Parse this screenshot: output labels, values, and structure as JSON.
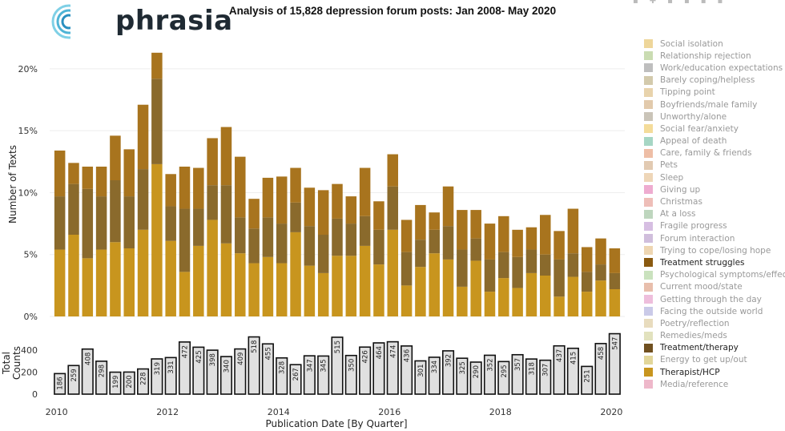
{
  "logo": {
    "text": "phrasia"
  },
  "toolbar": {
    "icons": [
      "zoom-icon",
      "pan-icon",
      "zoom-in-icon",
      "zoom-out-icon",
      "autoscale-icon",
      "reset-icon"
    ]
  },
  "colors": {
    "therapist": "#c8951e",
    "treatment_therapy": "#8a6a2c",
    "treatment_struggles": "#a8741e",
    "counts_fill": "#e0e0e0",
    "counts_stroke": "#111111",
    "grid": "#eeeeee"
  },
  "chart_data": [
    {
      "type": "bar",
      "stacked": true,
      "title": "Analysis of 15,828 depression forum posts: Jan 2008- May 2020",
      "ylabel": "Number of Texts",
      "ylim": [
        0,
        22
      ],
      "yticks": [
        "0%",
        "5%",
        "10%",
        "15%",
        "20%"
      ],
      "ytick_values": [
        0,
        5,
        10,
        15,
        20
      ],
      "x": [
        2010.0,
        2010.25,
        2010.5,
        2010.75,
        2011.0,
        2011.25,
        2011.5,
        2011.75,
        2012.0,
        2012.25,
        2012.5,
        2012.75,
        2013.0,
        2013.25,
        2013.5,
        2013.75,
        2014.0,
        2014.25,
        2014.5,
        2014.75,
        2015.0,
        2015.25,
        2015.5,
        2015.75,
        2016.0,
        2016.25,
        2016.5,
        2016.75,
        2017.0,
        2017.25,
        2017.5,
        2017.75,
        2018.0,
        2018.25,
        2018.5,
        2018.75,
        2019.0,
        2019.25,
        2019.5,
        2019.75,
        2020.0
      ],
      "series": [
        {
          "name": "Therapist/HCP",
          "values": [
            5.4,
            6.6,
            4.7,
            5.4,
            6.0,
            5.5,
            7.0,
            12.3,
            6.1,
            3.6,
            5.7,
            7.8,
            5.9,
            5.1,
            4.3,
            4.8,
            4.3,
            6.8,
            4.1,
            3.5,
            4.9,
            4.9,
            5.7,
            4.2,
            7.0,
            2.5,
            4.0,
            5.1,
            4.6,
            2.4,
            4.5,
            2.0,
            3.1,
            2.3,
            3.5,
            3.3,
            1.6,
            3.2,
            2.0,
            2.9,
            2.2
          ]
        },
        {
          "name": "Treatment/therapy",
          "values": [
            4.3,
            4.1,
            5.6,
            4.3,
            5.0,
            4.2,
            4.9,
            6.9,
            2.8,
            5.1,
            3.0,
            2.8,
            4.7,
            2.9,
            2.8,
            3.2,
            3.2,
            2.4,
            3.2,
            3.1,
            3.0,
            2.6,
            2.4,
            2.8,
            3.5,
            2.7,
            2.2,
            1.9,
            2.7,
            3.0,
            1.8,
            2.6,
            2.1,
            2.5,
            1.9,
            1.7,
            3.0,
            1.9,
            1.6,
            1.3,
            1.3
          ]
        },
        {
          "name": "Treatment struggles",
          "values": [
            3.7,
            1.7,
            1.8,
            2.4,
            3.6,
            3.8,
            5.2,
            2.1,
            2.6,
            3.4,
            3.3,
            3.8,
            4.7,
            4.9,
            2.4,
            3.2,
            3.8,
            2.8,
            3.1,
            3.6,
            2.8,
            2.2,
            3.9,
            2.3,
            2.6,
            2.6,
            2.8,
            1.4,
            3.2,
            3.2,
            2.3,
            2.9,
            2.9,
            2.2,
            1.8,
            3.2,
            2.3,
            3.6,
            2.0,
            2.1,
            2.0
          ]
        }
      ],
      "legend": {
        "placement": "right",
        "entries": [
          {
            "label": "Social isolation",
            "color": "#e8c878",
            "active": false
          },
          {
            "label": "Relationship rejection",
            "color": "#b8d098",
            "active": false
          },
          {
            "label": "Work/education expectations",
            "color": "#a8a8a8",
            "active": false
          },
          {
            "label": "Barely coping/helpless",
            "color": "#c4b890",
            "active": false
          },
          {
            "label": "Tipping point",
            "color": "#e0c490",
            "active": false
          },
          {
            "label": "Boyfriends/male family",
            "color": "#d8b890",
            "active": false
          },
          {
            "label": "Unworthy/alone",
            "color": "#b8b0a0",
            "active": false
          },
          {
            "label": "Social fear/anxiety",
            "color": "#f0d078",
            "active": false
          },
          {
            "label": "Appeal of death",
            "color": "#88c8b0",
            "active": false
          },
          {
            "label": "Care, family & friends",
            "color": "#e8a888",
            "active": false
          },
          {
            "label": "Pets",
            "color": "#d8b898",
            "active": false
          },
          {
            "label": "Sleep",
            "color": "#e8c8a0",
            "active": false
          },
          {
            "label": "Giving up",
            "color": "#e890c0",
            "active": false
          },
          {
            "label": "Christmas",
            "color": "#e8a8a0",
            "active": false
          },
          {
            "label": "At a loss",
            "color": "#a8c8a8",
            "active": false
          },
          {
            "label": "Fragile progress",
            "color": "#c8a8d8",
            "active": false
          },
          {
            "label": "Forum interaction",
            "color": "#c0a8d0",
            "active": false
          },
          {
            "label": "Trying to cope/losing hope",
            "color": "#e8c898",
            "active": false
          },
          {
            "label": "Treatment struggles",
            "color": "#8a5a10",
            "active": true
          },
          {
            "label": "Psychological symptoms/effects",
            "color": "#b8d8a8",
            "active": false
          },
          {
            "label": "Current mood/state",
            "color": "#e0a890",
            "active": false
          },
          {
            "label": "Getting through the day",
            "color": "#e8a8d0",
            "active": false
          },
          {
            "label": "Facing the outside world",
            "color": "#b8b8e0",
            "active": false
          },
          {
            "label": "Poetry/reflection",
            "color": "#e0d0a8",
            "active": false
          },
          {
            "label": "Remedies/meds",
            "color": "#d8d8a8",
            "active": false
          },
          {
            "label": "Treatment/therapy",
            "color": "#705020",
            "active": true
          },
          {
            "label": "Energy to get up/out",
            "color": "#d8c878",
            "active": false
          },
          {
            "label": "Therapist/HCP",
            "color": "#c8951e",
            "active": true
          },
          {
            "label": "Media/reference",
            "color": "#e8a0b8",
            "active": false
          }
        ]
      }
    },
    {
      "type": "bar",
      "ylabel": "Total Counts",
      "xlabel": "Publication Date [By Quarter]",
      "ylim": [
        0,
        580
      ],
      "yticks": [
        "0",
        "200",
        "400"
      ],
      "ytick_values": [
        0,
        200,
        400
      ],
      "xticks": [
        "2010",
        "2012",
        "2014",
        "2016",
        "2018",
        "2020"
      ],
      "xtick_values": [
        2010,
        2012,
        2014,
        2016,
        2018,
        2020
      ],
      "x": [
        2010.0,
        2010.25,
        2010.5,
        2010.75,
        2011.0,
        2011.25,
        2011.5,
        2011.75,
        2012.0,
        2012.25,
        2012.5,
        2012.75,
        2013.0,
        2013.25,
        2013.5,
        2013.75,
        2014.0,
        2014.25,
        2014.5,
        2014.75,
        2015.0,
        2015.25,
        2015.5,
        2015.75,
        2016.0,
        2016.25,
        2016.5,
        2016.75,
        2017.0,
        2017.25,
        2017.5,
        2017.75,
        2018.0,
        2018.25,
        2018.5,
        2018.75,
        2019.0,
        2019.25,
        2019.5,
        2019.75,
        2020.0
      ],
      "values": [
        186,
        259,
        408,
        298,
        199,
        200,
        228,
        319,
        331,
        472,
        425,
        398,
        340,
        409,
        518,
        455,
        328,
        267,
        347,
        345,
        515,
        350,
        426,
        464,
        474,
        436,
        301,
        334,
        392,
        325,
        290,
        352,
        295,
        357,
        318,
        307,
        437,
        415,
        251,
        458,
        547
      ],
      "labels": [
        "186",
        "259",
        "408",
        "298",
        "199",
        "200",
        "228",
        "319",
        "331",
        "472",
        "425",
        "398",
        "340",
        "409",
        "518",
        "455",
        "328",
        "267",
        "347",
        "345",
        "515",
        "350",
        "426",
        "464",
        "474",
        "436",
        "301",
        "334",
        "392",
        "325",
        "290",
        "352",
        "295",
        "357",
        "318",
        "307",
        "437",
        "415",
        "251",
        "458",
        "547"
      ]
    }
  ]
}
